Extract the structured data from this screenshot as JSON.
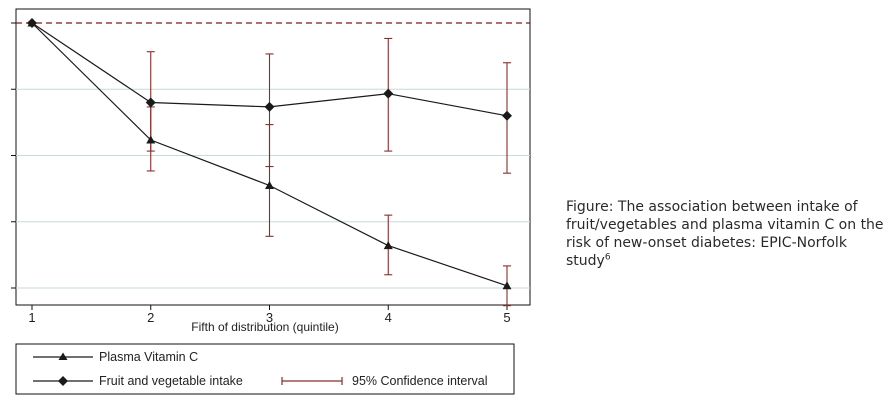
{
  "chart_data": {
    "type": "line",
    "x": [
      1,
      2,
      3,
      4,
      5
    ],
    "xlabel": "Fifth of distribution (quintile)",
    "xticks": [
      "1",
      "2",
      "3",
      "4",
      "5"
    ],
    "ylim": [
      0.4,
      1.0
    ],
    "reference_line": 1.0,
    "grid": true,
    "series": [
      {
        "name": "Plasma Vitamin C",
        "marker": "triangle",
        "values": [
          1.0,
          0.735,
          0.632,
          0.496,
          0.405
        ],
        "ci_lower": [
          null,
          0.665,
          0.517,
          0.43,
          0.36
        ],
        "ci_upper": [
          null,
          0.81,
          0.77,
          0.565,
          0.45
        ]
      },
      {
        "name": "Fruit and vegetable intake",
        "marker": "diamond",
        "values": [
          1.0,
          0.82,
          0.81,
          0.84,
          0.79
        ],
        "ci_lower": [
          null,
          0.71,
          0.675,
          0.71,
          0.66
        ],
        "ci_upper": [
          null,
          0.935,
          0.93,
          0.965,
          0.91
        ]
      }
    ],
    "legend": {
      "placement": "bottom-left",
      "ci_label": "95% Confidence interval"
    },
    "colors": {
      "line": "#1a1a1a",
      "ci": "#8b2c2c",
      "reference": "#7a1f1f",
      "grid": "#c7dbd6"
    }
  },
  "caption": {
    "label": "Figure:",
    "text": "The association between intake of fruit/vegetables and plasma vitamin C on the risk of new-onset diabetes: EPIC-Norfolk study",
    "reference": "6"
  }
}
